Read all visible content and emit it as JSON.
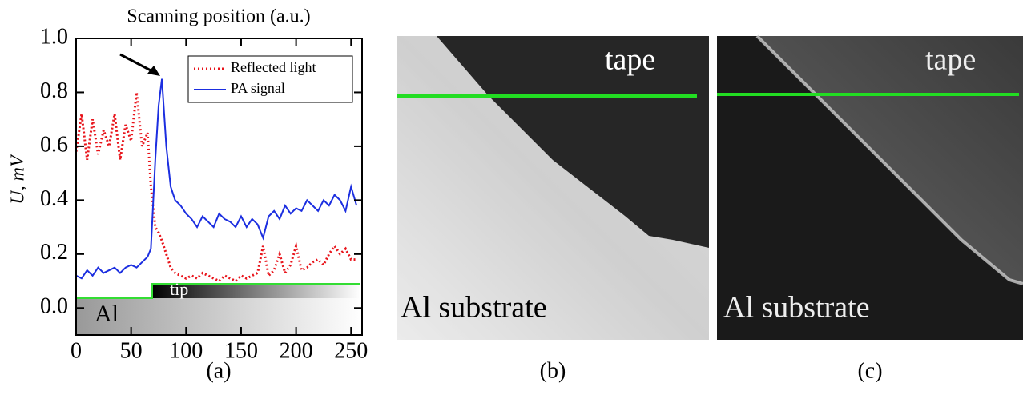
{
  "chart_data": {
    "type": "line",
    "x_label": "Scanning position (a.u.)",
    "y_label": "U, mV",
    "panel_label": "(a)",
    "annotations": [
      "Al",
      "tip"
    ],
    "x": [
      0,
      5,
      10,
      15,
      20,
      25,
      30,
      35,
      40,
      45,
      50,
      55,
      60,
      65,
      68,
      72,
      75,
      78,
      82,
      86,
      90,
      95,
      100,
      105,
      110,
      115,
      120,
      125,
      130,
      135,
      140,
      145,
      150,
      155,
      160,
      165,
      170,
      175,
      180,
      185,
      190,
      195,
      200,
      205,
      210,
      215,
      220,
      225,
      230,
      235,
      240,
      245,
      250,
      255
    ],
    "series": [
      {
        "name": "Reflected light",
        "color": "#e8141b",
        "dashed": true,
        "values": [
          0.58,
          0.72,
          0.55,
          0.7,
          0.57,
          0.66,
          0.6,
          0.72,
          0.55,
          0.68,
          0.62,
          0.8,
          0.6,
          0.65,
          0.45,
          0.3,
          0.28,
          0.25,
          0.2,
          0.15,
          0.13,
          0.12,
          0.11,
          0.12,
          0.11,
          0.13,
          0.12,
          0.11,
          0.1,
          0.12,
          0.11,
          0.1,
          0.12,
          0.11,
          0.12,
          0.13,
          0.23,
          0.12,
          0.14,
          0.2,
          0.13,
          0.16,
          0.23,
          0.14,
          0.15,
          0.17,
          0.18,
          0.16,
          0.2,
          0.23,
          0.2,
          0.22,
          0.18,
          0.18
        ]
      },
      {
        "name": "PA signal",
        "color": "#1b2ee0",
        "dashed": false,
        "values": [
          0.12,
          0.11,
          0.14,
          0.12,
          0.15,
          0.13,
          0.14,
          0.15,
          0.13,
          0.15,
          0.16,
          0.15,
          0.17,
          0.19,
          0.22,
          0.55,
          0.75,
          0.85,
          0.6,
          0.45,
          0.4,
          0.38,
          0.35,
          0.33,
          0.3,
          0.34,
          0.32,
          0.3,
          0.35,
          0.33,
          0.32,
          0.3,
          0.34,
          0.3,
          0.33,
          0.31,
          0.26,
          0.34,
          0.36,
          0.33,
          0.38,
          0.35,
          0.37,
          0.36,
          0.4,
          0.38,
          0.36,
          0.4,
          0.38,
          0.42,
          0.4,
          0.36,
          0.45,
          0.38
        ]
      }
    ],
    "xlim": [
      0,
      260
    ],
    "ylim": [
      -0.1,
      1.0
    ],
    "xticks": [
      0,
      50,
      100,
      150,
      200,
      250
    ],
    "yticks": [
      {
        "value": 0,
        "label": "0.0"
      },
      0.2,
      0.4,
      0.6,
      0.8,
      {
        "value": 1,
        "label": "1.0"
      }
    ],
    "legend": "upper right"
  },
  "panels": [
    {
      "label": "(b)",
      "texts": [
        "tape",
        "Al substrate"
      ]
    },
    {
      "label": "(c)",
      "texts": [
        "tape",
        "Al substrate"
      ]
    }
  ]
}
